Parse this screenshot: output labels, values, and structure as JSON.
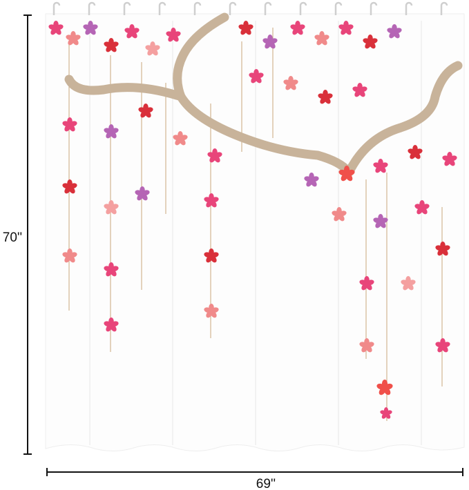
{
  "dimensions": {
    "height_label": "70''",
    "width_label": "69''"
  }
}
